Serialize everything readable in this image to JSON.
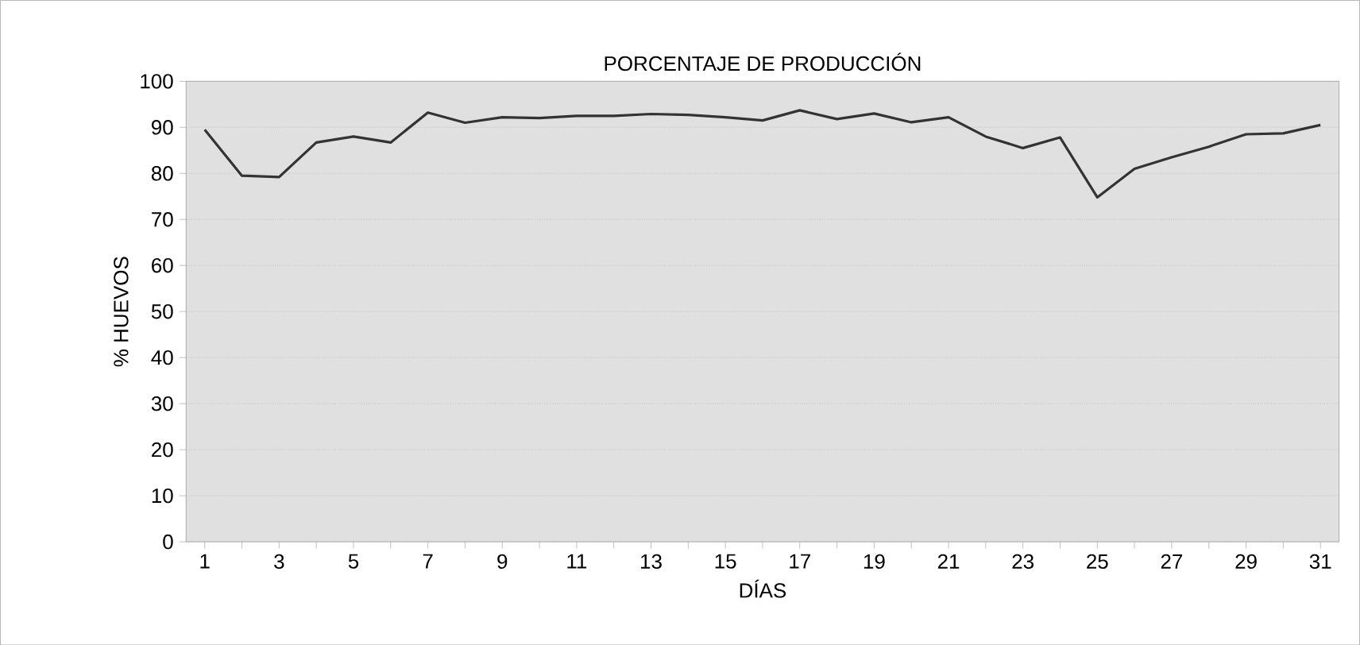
{
  "chart_data": {
    "type": "line",
    "title": "PORCENTAJE DE PRODUCCIÓN",
    "xlabel": "DÍAS",
    "ylabel": "% HUEVOS",
    "x": [
      1,
      2,
      3,
      4,
      5,
      6,
      7,
      8,
      9,
      10,
      11,
      12,
      13,
      14,
      15,
      16,
      17,
      18,
      19,
      20,
      21,
      22,
      23,
      24,
      25,
      26,
      27,
      28,
      29,
      30,
      31
    ],
    "series": [
      {
        "color": "#333333",
        "values": [
          89.5,
          79.5,
          79.2,
          86.7,
          88,
          86.7,
          93.2,
          91,
          92.2,
          92,
          92.5,
          92.5,
          92.9,
          92.7,
          92.2,
          91.5,
          93.7,
          91.8,
          93,
          91.1,
          92.2,
          88,
          85.5,
          87.8,
          74.8,
          81,
          83.5,
          85.8,
          88.5,
          88.7,
          90.5
        ]
      }
    ],
    "xlim": [
      0.5,
      31.5
    ],
    "xticks": [
      1,
      {
        "value": 2,
        "label": null
      },
      3,
      {
        "value": 4,
        "label": null
      },
      5,
      {
        "value": 6,
        "label": null
      },
      7,
      {
        "value": 8,
        "label": null
      },
      9,
      {
        "value": 10,
        "label": null
      },
      11,
      {
        "value": 12,
        "label": null
      },
      13,
      {
        "value": 14,
        "label": null
      },
      15,
      {
        "value": 16,
        "label": null
      },
      17,
      {
        "value": 18,
        "label": null
      },
      19,
      {
        "value": 20,
        "label": null
      },
      21,
      {
        "value": 22,
        "label": null
      },
      23,
      {
        "value": 24,
        "label": null
      },
      25,
      {
        "value": 26,
        "label": null
      },
      27,
      {
        "value": 28,
        "label": null
      },
      29,
      {
        "value": 30,
        "label": null
      },
      31
    ],
    "ylim": [
      0,
      100
    ],
    "yticks": [
      0,
      10,
      20,
      30,
      40,
      50,
      60,
      70,
      80,
      90,
      100
    ],
    "grid": "y",
    "marker": "none",
    "line_style": "solid"
  }
}
